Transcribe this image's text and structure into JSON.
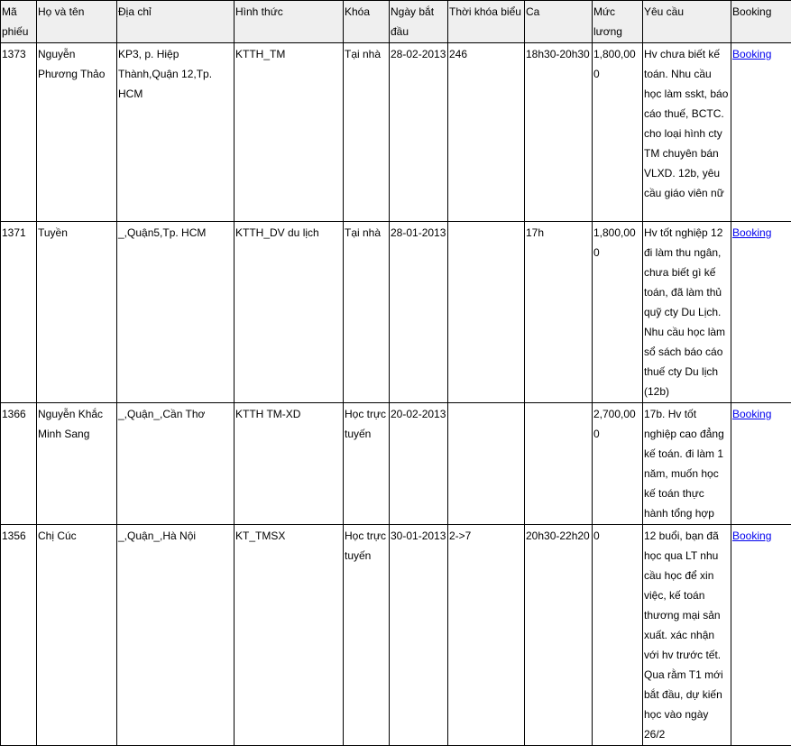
{
  "headers": [
    "Mã phiếu",
    "Họ và tên",
    "Địa chỉ",
    "Hình thức",
    "Khóa",
    "Ngày bắt đầu",
    "Thời khóa biểu",
    "Ca",
    "Mức lương",
    "Yêu cầu",
    "Booking"
  ],
  "rows": [
    {
      "id": "1373",
      "name": "Nguyễn Phương Thảo",
      "address": "KP3, p. Hiệp Thành,Quận 12,Tp. HCM",
      "type": "KTTH_TM",
      "course": "Tại nhà",
      "start": "28-02-2013",
      "schedule": "246",
      "shift": "18h30-20h30",
      "salary": "1,800,000",
      "request": "Hv chưa biết kế toán. Nhu cầu học làm sskt, báo cáo thuế, BCTC. cho loại hình cty TM chuyên bán VLXD. 12b, yêu cầu giáo viên nữ",
      "booking": "Booking"
    },
    {
      "id": "1371",
      "name": "Tuyền",
      "address": "_,Quận5,Tp. HCM",
      "type": "KTTH_DV du lịch",
      "course": "Tại nhà",
      "start": "28-01-2013",
      "schedule": "",
      "shift": "17h",
      "salary": "1,800,000",
      "request": "Hv tốt nghiệp 12 đi làm thu ngân, chưa biết gì kế toán, đã làm thủ quỹ cty Du Lịch. Nhu cầu học làm sổ sách báo cáo thuế cty Du lịch (12b)",
      "booking": "Booking"
    },
    {
      "id": "1366",
      "name": "Nguyễn Khắc Minh Sang",
      "address": "_,Quận_,Cần Thơ",
      "type": "KTTH TM-XD",
      "course": "Học trực tuyến",
      "start": "20-02-2013",
      "schedule": "",
      "shift": "",
      "salary": "2,700,000",
      "request": "17b. Hv tốt nghiệp cao đẳng kế toán. đi làm 1 năm, muốn học kế toán thực hành tổng hợp",
      "booking": "Booking"
    },
    {
      "id": "1356",
      "name": "Chị Cúc",
      "address": "_,Quận_,Hà Nội",
      "type": "KT_TMSX",
      "course": "Học trực tuyến",
      "start": "30-01-2013",
      "schedule": "2->7",
      "shift": "20h30-22h20",
      "salary": "0",
      "request": "12 buổi, bạn đã học qua LT nhu cầu học để xin việc, kế toán thương mại sản xuất. xác nhận với hv trước tết. Qua rằm T1 mới bắt đầu, dự kiến học vào ngày 26/2",
      "booking": "Booking"
    }
  ]
}
